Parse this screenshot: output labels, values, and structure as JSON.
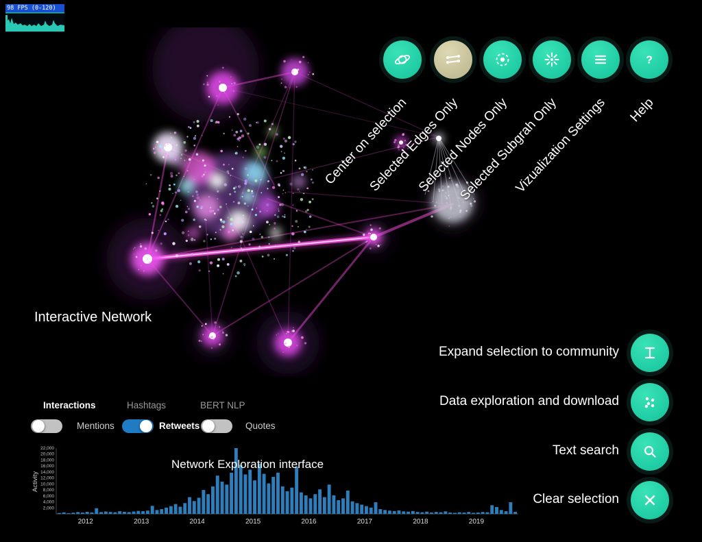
{
  "fps": {
    "label": "98 FPS (0-120)"
  },
  "toolbar": {
    "buttons": [
      {
        "label": "Center on selection"
      },
      {
        "label": "Selected Edges Only"
      },
      {
        "label": "Selected Nodes Only"
      },
      {
        "label": "Selected Subgrah Only"
      },
      {
        "label": "Vizualization Settings"
      },
      {
        "label": "Help"
      }
    ]
  },
  "network": {
    "caption": "Interactive Network"
  },
  "actions": [
    {
      "label": "Expand selection to community"
    },
    {
      "label": "Data exploration and download"
    },
    {
      "label": "Text search"
    },
    {
      "label": "Clear selection"
    }
  ],
  "panel": {
    "tabs": [
      {
        "label": "Interactions",
        "active": true
      },
      {
        "label": "Hashtags",
        "active": false
      },
      {
        "label": "BERT NLP",
        "active": false
      }
    ],
    "toggles": [
      {
        "label": "Mentions",
        "on": false
      },
      {
        "label": "Retweets",
        "on": true
      },
      {
        "label": "Quotes",
        "on": false
      }
    ]
  },
  "chart_data": {
    "type": "bar",
    "title": "Network Exploration interface",
    "xlabel": "",
    "ylabel": "Activity",
    "ylim": [
      0,
      22000
    ],
    "grid": false,
    "x_ticks": [
      "2012",
      "2013",
      "2014",
      "2015",
      "2016",
      "2017",
      "2018",
      "2019"
    ],
    "x_tick_indices": [
      6,
      18,
      30,
      42,
      54,
      66,
      78,
      90
    ],
    "y_ticks": [
      2000,
      4000,
      6000,
      8000,
      10000,
      12000,
      14000,
      16000,
      18000,
      20000,
      22000
    ],
    "x_start": "2011-07",
    "bar_interval": "month",
    "values": [
      300,
      500,
      250,
      400,
      600,
      450,
      700,
      500,
      1900,
      600,
      800,
      650,
      550,
      900,
      700,
      600,
      800,
      1000,
      900,
      1100,
      2700,
      1300,
      1600,
      2100,
      2600,
      3300,
      2400,
      3600,
      5600,
      4300,
      5400,
      8000,
      6600,
      9200,
      12800,
      10800,
      9800,
      13800,
      22000,
      16400,
      13200,
      14800,
      11200,
      16800,
      13400,
      10200,
      12400,
      13800,
      9200,
      7600,
      8800,
      15800,
      7200,
      6200,
      5200,
      6600,
      8200,
      5600,
      9800,
      6200,
      4600,
      5200,
      7800,
      4200,
      3600,
      3100,
      2600,
      2100,
      3900,
      1600,
      1300,
      1100,
      950,
      1150,
      850,
      750,
      950,
      650,
      550,
      750,
      450,
      650,
      550,
      850,
      450,
      350,
      550,
      450,
      650,
      350,
      450,
      650,
      550,
      2900,
      2300,
      1300,
      900,
      3900,
      700
    ]
  },
  "colors": {
    "accent": "#13c29c",
    "active_button": "#b9b38a",
    "toggle_on": "#1f7bc4",
    "toggle_off": "#c2c2c2",
    "bar": "#2e7ebc",
    "fps_graph": "#2bd4c0",
    "edge": "#ff4fe3"
  }
}
